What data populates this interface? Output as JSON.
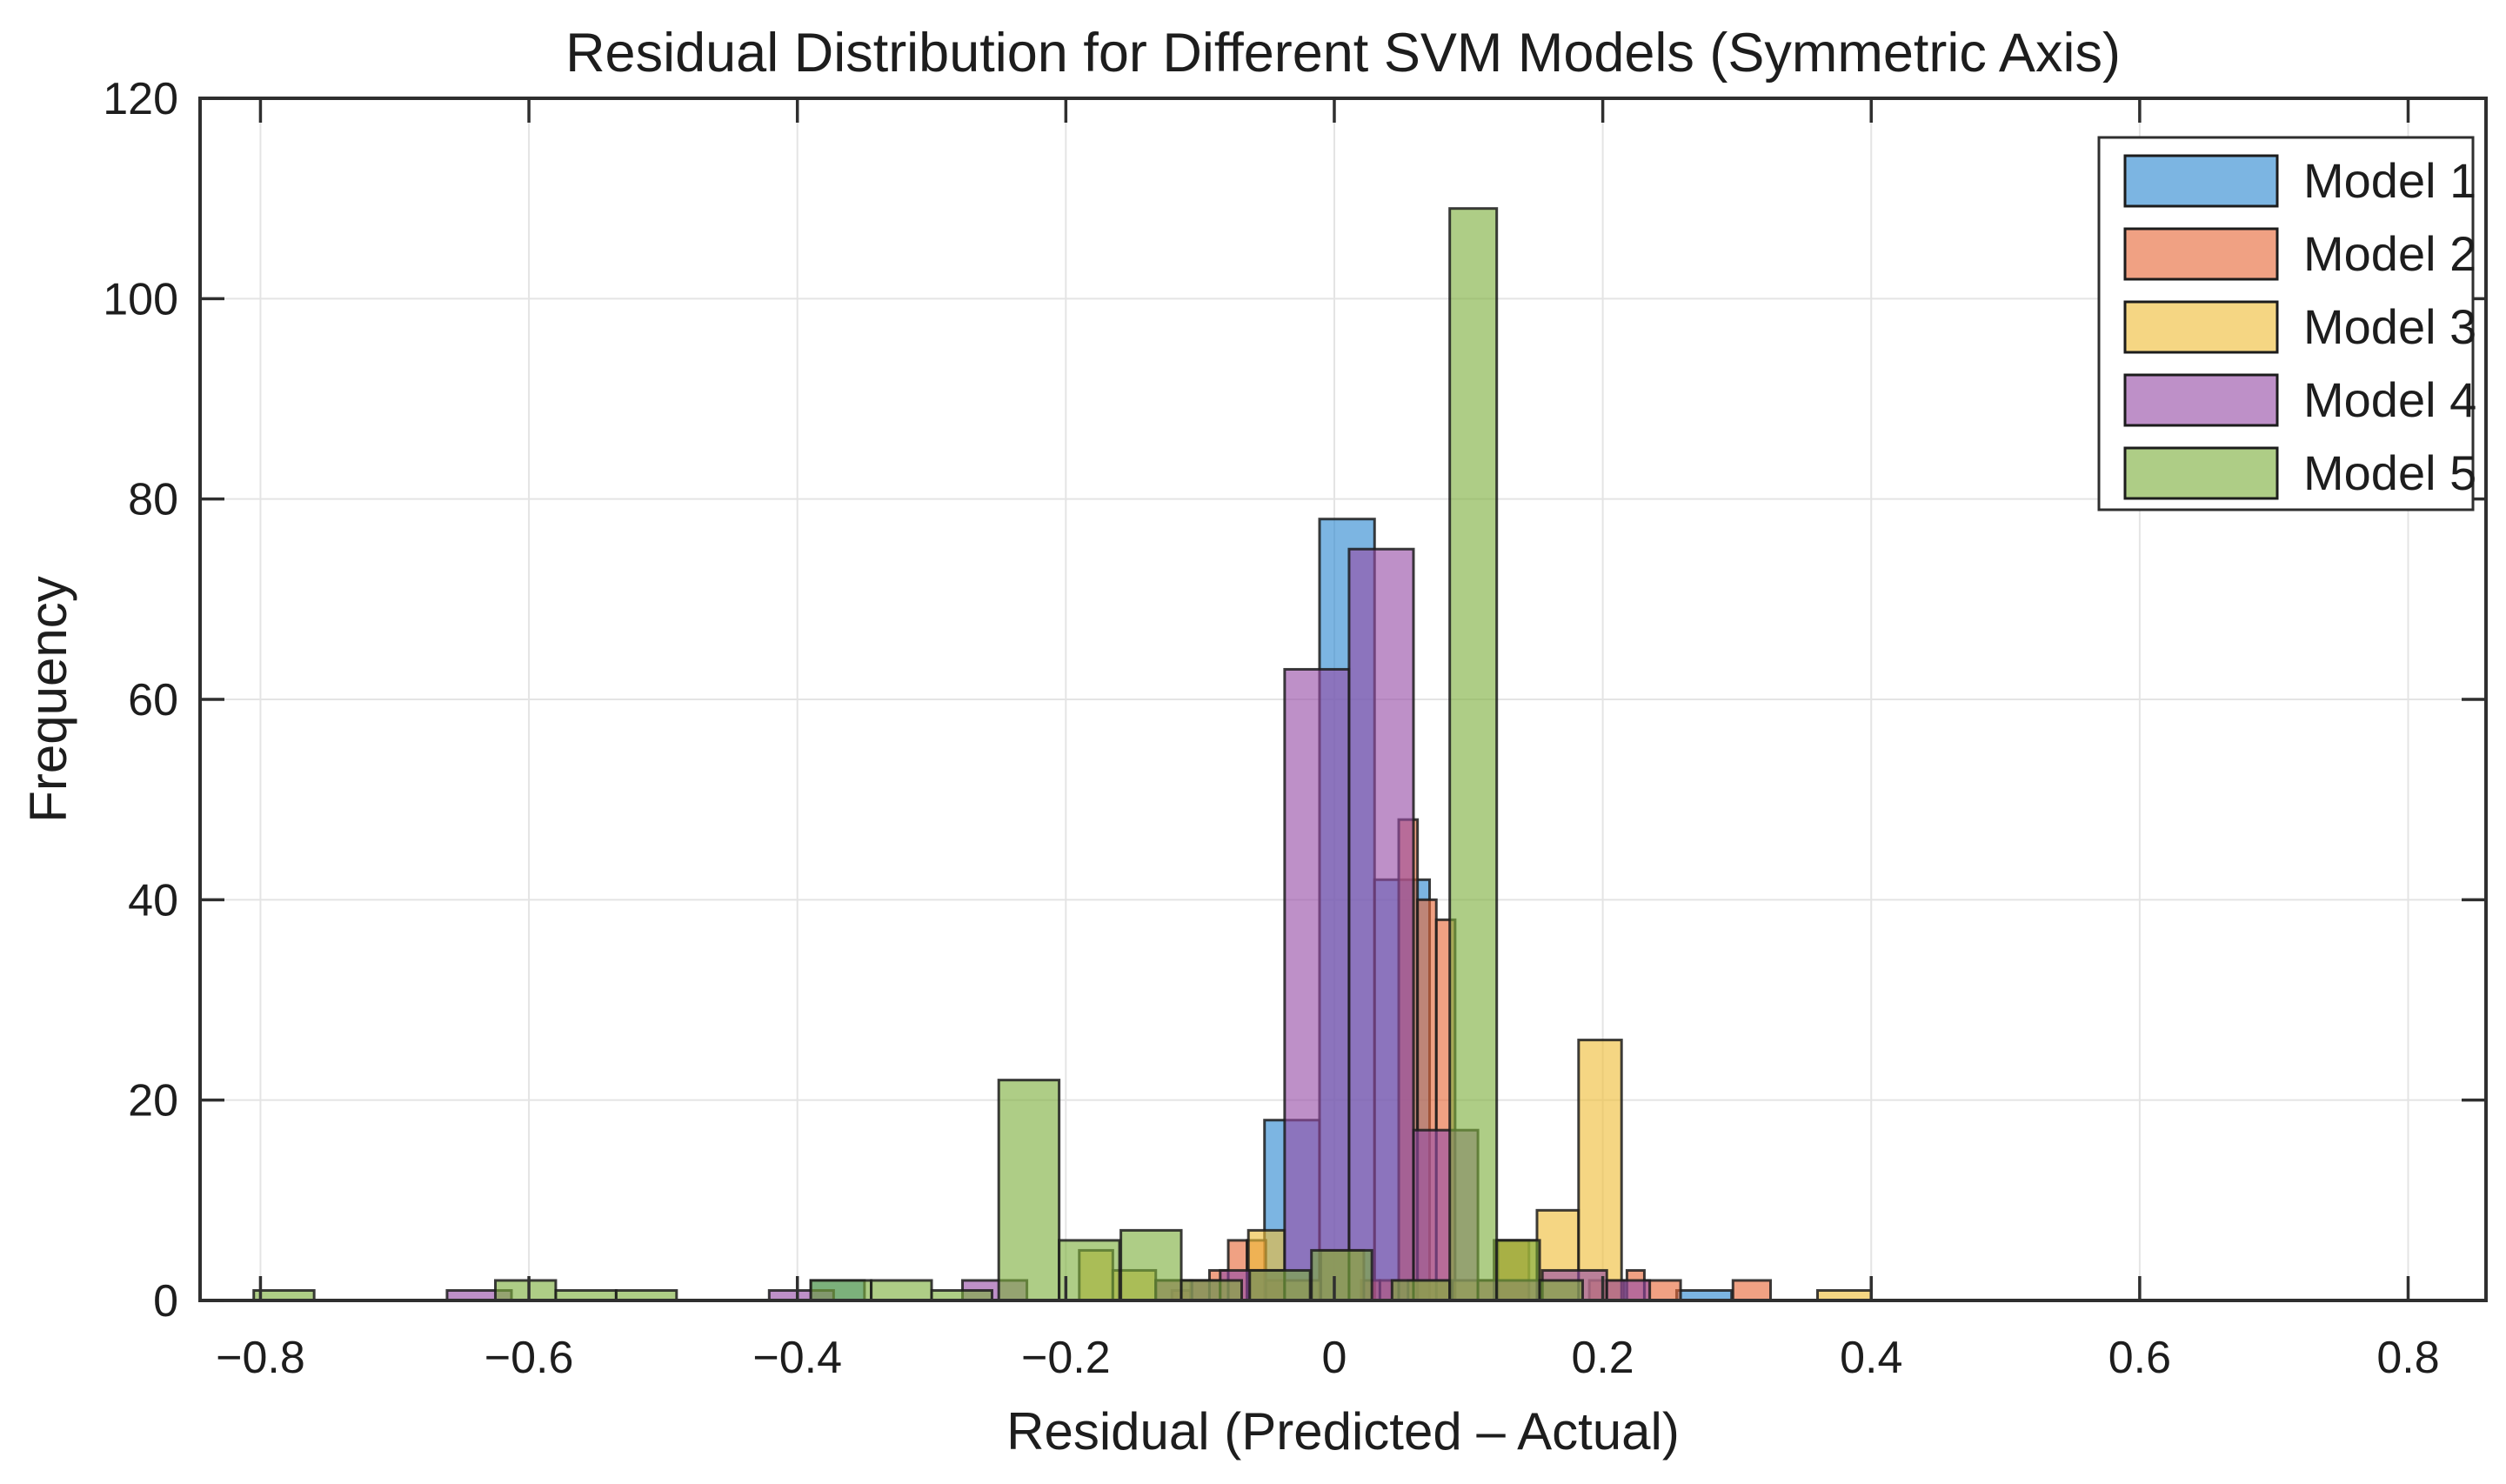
{
  "figure": {
    "title": "Residual Distribution for Different SVM Models (Symmetric Axis)",
    "xlabel": "Residual (Predicted – Actual)",
    "ylabel": "Frequency",
    "background": "#ffffff"
  },
  "chart_data": {
    "type": "histogram",
    "title": "Residual Distribution for Different SVM Models (Symmetric Axis)",
    "xlabel": "Residual (Predicted – Actual)",
    "ylabel": "Frequency",
    "xlim": [
      -0.845,
      0.858
    ],
    "ylim": [
      0,
      120
    ],
    "xtick_values": [
      -0.8,
      -0.6,
      -0.4,
      -0.2,
      0,
      0.2,
      0.4,
      0.6,
      0.8
    ],
    "xtick_labels": [
      "−0.8",
      "−0.6",
      "−0.4",
      "−0.2",
      "0",
      "0.2",
      "0.4",
      "0.6",
      "0.8"
    ],
    "ytick_values": [
      0,
      20,
      40,
      60,
      80,
      100,
      120
    ],
    "ytick_labels": [
      "0",
      "20",
      "40",
      "60",
      "80",
      "100",
      "120"
    ],
    "grid": true,
    "tick_direction": "in",
    "legend_position": "top-right",
    "style": {
      "fill_alpha": 0.62,
      "bar_edge_color": "#1c1c1c",
      "grid_color": "#e4e4e4",
      "axis_color": "#2f2f2f",
      "text_color": "#1d1d1d"
    },
    "series": [
      {
        "name": "Model 1",
        "color": "#2C88D0",
        "legend_swatch_color": "#7CB5E2",
        "bars": [
          [
            -0.39,
            -0.35,
            2
          ],
          [
            -0.052,
            -0.011,
            18
          ],
          [
            -0.011,
            0.03,
            78
          ],
          [
            0.03,
            0.071,
            42
          ],
          [
            0.255,
            0.296,
            1
          ]
        ]
      },
      {
        "name": "Model 2",
        "color": "#E76737",
        "legend_swatch_color": "#F0A183",
        "bars": [
          [
            -0.121,
            -0.107,
            1
          ],
          [
            -0.107,
            -0.093,
            2
          ],
          [
            -0.093,
            -0.079,
            3
          ],
          [
            -0.079,
            -0.065,
            6
          ],
          [
            -0.065,
            -0.051,
            6
          ],
          [
            -0.051,
            -0.037,
            2
          ],
          [
            0.02,
            0.034,
            2
          ],
          [
            0.034,
            0.048,
            2
          ],
          [
            0.048,
            0.062,
            48
          ],
          [
            0.062,
            0.076,
            40
          ],
          [
            0.076,
            0.09,
            38
          ],
          [
            0.122,
            0.145,
            6
          ],
          [
            0.19,
            0.216,
            2
          ],
          [
            0.218,
            0.231,
            3
          ],
          [
            0.231,
            0.258,
            2
          ],
          [
            0.297,
            0.325,
            2
          ]
        ]
      },
      {
        "name": "Model 3",
        "color": "#EFBD37",
        "legend_swatch_color": "#F5D683",
        "bars": [
          [
            -0.19,
            -0.165,
            5
          ],
          [
            -0.165,
            -0.133,
            3
          ],
          [
            -0.133,
            -0.106,
            2
          ],
          [
            -0.064,
            -0.037,
            7
          ],
          [
            -0.037,
            -0.01,
            2
          ],
          [
            -0.01,
            0.022,
            5
          ],
          [
            0.055,
            0.088,
            2
          ],
          [
            0.088,
            0.12,
            2
          ],
          [
            0.119,
            0.151,
            6
          ],
          [
            0.151,
            0.182,
            9
          ],
          [
            0.182,
            0.214,
            26
          ],
          [
            0.36,
            0.4,
            1
          ]
        ]
      },
      {
        "name": "Model 4",
        "color": "#964CA6",
        "legend_swatch_color": "#BE90C8",
        "bars": [
          [
            -0.661,
            -0.613,
            1
          ],
          [
            -0.421,
            -0.373,
            1
          ],
          [
            -0.277,
            -0.229,
            2
          ],
          [
            -0.133,
            -0.085,
            2
          ],
          [
            -0.085,
            -0.037,
            3
          ],
          [
            -0.037,
            0.011,
            63
          ],
          [
            0.011,
            0.059,
            75
          ],
          [
            0.059,
            0.107,
            17
          ],
          [
            0.107,
            0.155,
            2
          ],
          [
            0.155,
            0.203,
            3
          ],
          [
            0.203,
            0.235,
            2
          ]
        ]
      },
      {
        "name": "Model 5",
        "color": "#7CAE3C",
        "legend_swatch_color": "#AECD86",
        "bars": [
          [
            -0.805,
            -0.76,
            1
          ],
          [
            -0.625,
            -0.58,
            2
          ],
          [
            -0.58,
            -0.535,
            1
          ],
          [
            -0.535,
            -0.49,
            1
          ],
          [
            -0.39,
            -0.345,
            2
          ],
          [
            -0.345,
            -0.3,
            2
          ],
          [
            -0.3,
            -0.255,
            1
          ],
          [
            -0.25,
            -0.205,
            22
          ],
          [
            -0.205,
            -0.16,
            6
          ],
          [
            -0.159,
            -0.114,
            7
          ],
          [
            -0.114,
            -0.069,
            2
          ],
          [
            -0.063,
            -0.018,
            3
          ],
          [
            -0.017,
            0.028,
            5
          ],
          [
            0.043,
            0.086,
            2
          ],
          [
            0.086,
            0.121,
            109
          ],
          [
            0.121,
            0.153,
            6
          ],
          [
            0.153,
            0.185,
            2
          ]
        ]
      }
    ]
  }
}
